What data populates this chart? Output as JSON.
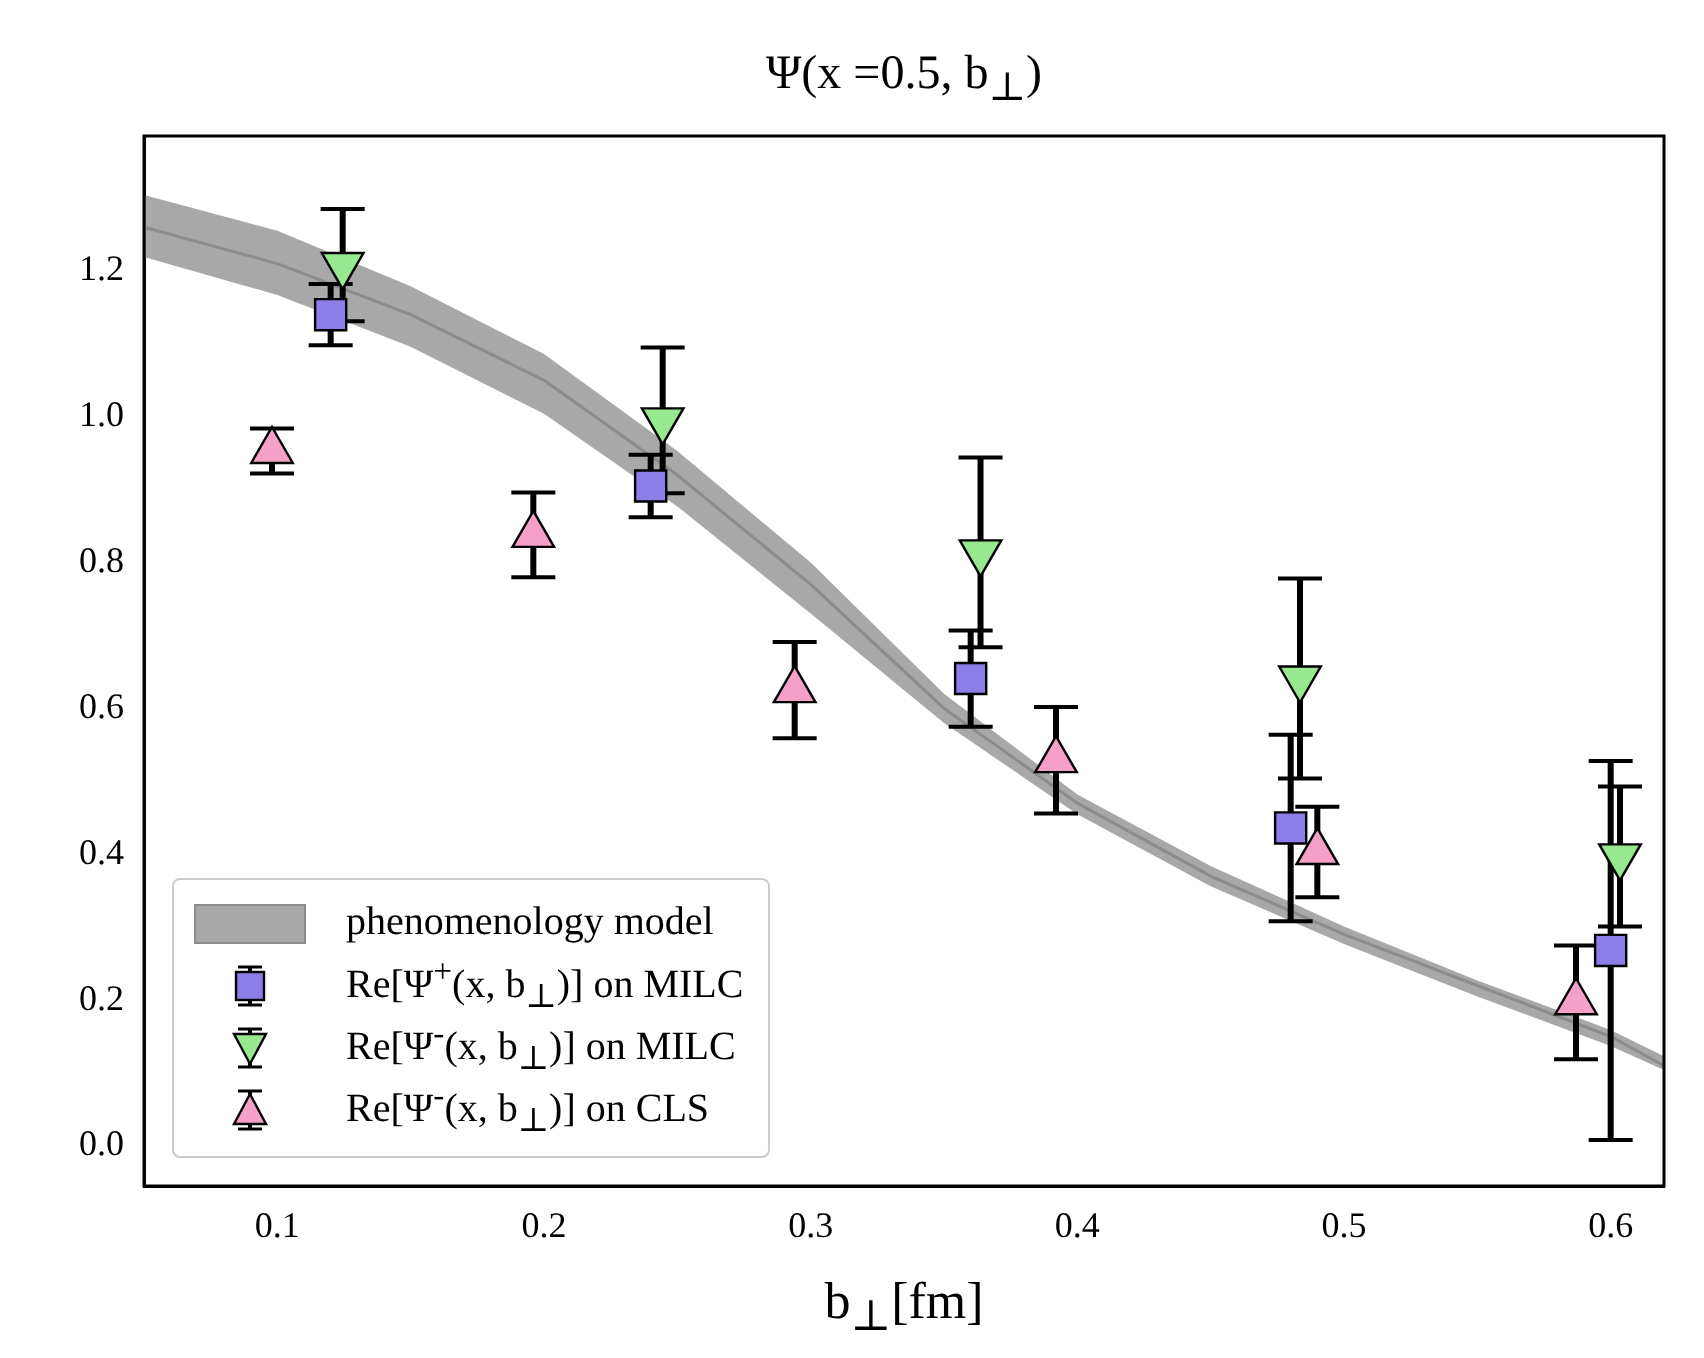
{
  "chart_data": {
    "type": "scatter",
    "title": "Ψ(x =0.5, b$_{⊥}$)",
    "xlabel": "b$_{⊥}$[fm]",
    "xlim": [
      0.05,
      0.62
    ],
    "ylim": [
      -0.055,
      1.385
    ],
    "xticks": [
      0.1,
      0.2,
      0.3,
      0.4,
      0.5,
      0.6
    ],
    "yticks": [
      {
        "value": 0,
        "label": "0.0"
      },
      {
        "value": 0.2,
        "label": "0.2"
      },
      {
        "value": 0.4,
        "label": "0.4"
      },
      {
        "value": 0.6,
        "label": "0.6"
      },
      {
        "value": 0.8,
        "label": "0.8"
      },
      {
        "value": 1,
        "label": "1.0"
      },
      {
        "value": 1.2,
        "label": "1.2"
      }
    ],
    "legend": "bottom left",
    "series": [
      {
        "name": "phenomenology model",
        "type": "line",
        "color": "#8c8c8c",
        "x": [
          0.05,
          0.1,
          0.15,
          0.2,
          0.25,
          0.3,
          0.35,
          0.4,
          0.45,
          0.5,
          0.55,
          0.6,
          0.62
        ],
        "values": [
          1.26,
          1.21,
          1.14,
          1.05,
          0.92,
          0.77,
          0.6,
          0.47,
          0.37,
          0.29,
          0.22,
          0.15,
          0.11
        ],
        "lower": [
          1.219,
          1.167,
          1.096,
          1.004,
          0.877,
          0.73,
          0.58,
          0.455,
          0.356,
          0.277,
          0.205,
          0.137,
          0.104
        ],
        "upper": [
          1.304,
          1.255,
          1.179,
          1.086,
          0.953,
          0.8,
          0.62,
          0.482,
          0.384,
          0.301,
          0.227,
          0.159,
          0.123
        ]
      },
      {
        "name": "Re[Ψ$^{+}$(x, b$_{⊥}$)] on MILC",
        "type": "scatter",
        "marker": "square",
        "color": "#8c7ee8",
        "x": [
          0.12,
          0.24,
          0.36,
          0.48,
          0.6
        ],
        "values": [
          1.14,
          0.905,
          0.641,
          0.436,
          0.268
        ],
        "errors": [
          0.042,
          0.043,
          0.066,
          0.128,
          0.26
        ]
      },
      {
        "name": "Re[Ψ$^{-}$(x, b$_{⊥}$)] on MILC",
        "type": "scatter",
        "marker": "triangle_down",
        "color": "#98e890",
        "x": [
          0.1245,
          0.2445,
          0.3637,
          0.4835,
          0.6035
        ],
        "values": [
          1.208,
          0.995,
          0.814,
          0.641,
          0.397
        ],
        "errors": [
          0.077,
          0.1,
          0.13,
          0.137,
          0.096
        ]
      },
      {
        "name": "Re[Ψ$^{-}$(x, b$_{⊥}$)] on CLS",
        "type": "scatter",
        "marker": "triangle",
        "color": "#f4a0c8",
        "x": [
          0.098,
          0.196,
          0.294,
          0.392,
          0.49,
          0.587
        ],
        "values": [
          0.953,
          0.838,
          0.625,
          0.529,
          0.403,
          0.197
        ],
        "errors": [
          0.031,
          0.058,
          0.066,
          0.073,
          0.062,
          0.078
        ]
      }
    ]
  }
}
